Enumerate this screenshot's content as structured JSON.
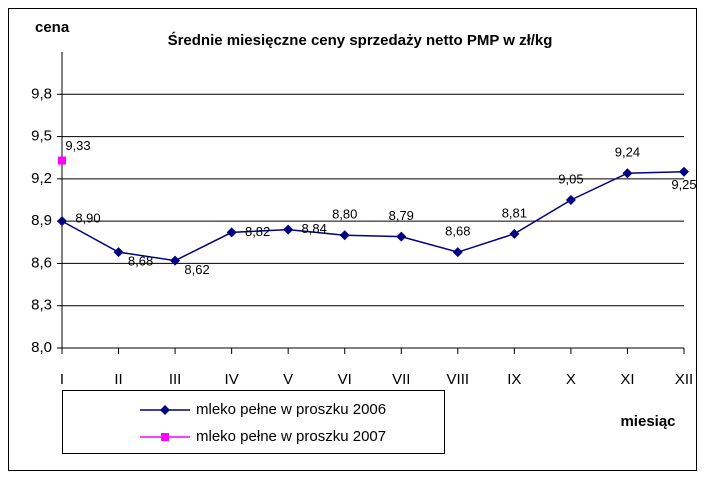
{
  "chart_data": {
    "type": "line",
    "title": "Średnie miesięczne ceny sprzedaży netto PMP w zł/kg",
    "y_label": "cena",
    "x_label": "miesiąc",
    "categories": [
      "I",
      "II",
      "III",
      "IV",
      "V",
      "VI",
      "VII",
      "VIII",
      "IX",
      "X",
      "XI",
      "XII"
    ],
    "series": [
      {
        "name": "mleko pełne w  proszku 2006",
        "color": "#000080",
        "marker": "diamond",
        "values": [
          8.9,
          8.68,
          8.62,
          8.82,
          8.84,
          8.8,
          8.79,
          8.68,
          8.81,
          9.05,
          9.24,
          9.25
        ],
        "value_labels": [
          "8,90",
          "8,68",
          "8,62",
          "8,82",
          "8,84",
          "8,80",
          "8,79",
          "8,68",
          "8,81",
          "9,05",
          "9,24",
          "9,25"
        ]
      },
      {
        "name": "mleko pełne w  proszku 2007",
        "color": "#ff00ff",
        "marker": "square",
        "values": [
          9.33,
          null,
          null,
          null,
          null,
          null,
          null,
          null,
          null,
          null,
          null,
          null
        ],
        "value_labels": [
          "9,33",
          null,
          null,
          null,
          null,
          null,
          null,
          null,
          null,
          null,
          null,
          null
        ]
      }
    ],
    "ylim": [
      8.0,
      10.1
    ],
    "yticks": [
      {
        "value": 8.0,
        "label": "8,0"
      },
      {
        "value": 8.3,
        "label": "8,3"
      },
      {
        "value": 8.6,
        "label": "8,6"
      },
      {
        "value": 8.9,
        "label": "8,9"
      },
      {
        "value": 9.2,
        "label": "9,2"
      },
      {
        "value": 9.5,
        "label": "9,5"
      },
      {
        "value": 9.8,
        "label": "9,8"
      }
    ],
    "grid": true,
    "legend": "bottom-left"
  }
}
